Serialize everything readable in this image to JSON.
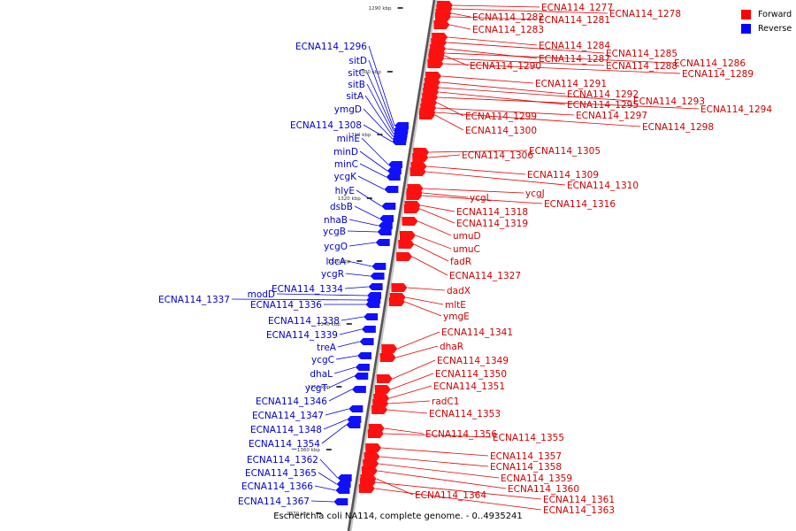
{
  "legend": {
    "forward_label": "Forward",
    "reverse_label": "Reverse",
    "forward_color": "#ff0000",
    "reverse_color": "#0000ff"
  },
  "caption": "Escherichia coli NA114, complete genome. - 0..4935241",
  "axis_ticks": [
    "1290 kbp",
    "1300 kbp",
    "1310 kbp",
    "1320 kbp",
    "1330 kbp",
    "1340 kbp",
    "1350 kbp",
    "1360 kbp",
    "1370 kbp"
  ],
  "forward_genes": [
    "ECNA114_1277",
    "ECNA114_1278",
    "ECNA114_1282",
    "ECNA114_1281",
    "ECNA114_1283",
    "ECNA114_1284",
    "ECNA114_1285",
    "ECNA114_1287",
    "ECNA114_1286",
    "ECNA114_1290",
    "ECNA114_1288",
    "ECNA114_1289",
    "ECNA114_1291",
    "ECNA114_1292",
    "ECNA114_1293",
    "ECNA114_1295",
    "ECNA114_1294",
    "ECNA114_1299",
    "ECNA114_1297",
    "ECNA114_1300",
    "ECNA114_1298",
    "ECNA114_1305",
    "ECNA114_1306",
    "ECNA114_1309",
    "ECNA114_1310",
    "ycgJ",
    "ycgL",
    "ECNA114_1316",
    "ECNA114_1318",
    "ECNA114_1319",
    "umuD",
    "umuC",
    "fadR",
    "ECNA114_1327",
    "dadX",
    "mltE",
    "ymgE",
    "ECNA114_1341",
    "dhaR",
    "ECNA114_1349",
    "ECNA114_1350",
    "ECNA114_1351",
    "radC1",
    "ECNA114_1353",
    "ECNA114_1356",
    "ECNA114_1355",
    "ECNA114_1357",
    "ECNA114_1358",
    "ECNA114_1359",
    "ECNA114_1360",
    "ECNA114_1364",
    "ECNA114_1361",
    "ECNA114_1363"
  ],
  "reverse_genes": [
    "ECNA114_1296",
    "sitD",
    "sitC",
    "sitB",
    "sitA",
    "ymgD",
    "ECNA114_1308",
    "minE",
    "minD",
    "minC",
    "ycgK",
    "hlyE",
    "dsbB",
    "nhaB",
    "ycgB",
    "ycgO",
    "ldcA",
    "ycgR",
    "ECNA114_1334",
    "modD",
    "ECNA114_1337",
    "ECNA114_1336",
    "ECNA114_1338",
    "ECNA114_1339",
    "treA",
    "ycgC",
    "dhaL",
    "ycgT",
    "ECNA114_1346",
    "ECNA114_1347",
    "ECNA114_1348",
    "ECNA114_1354",
    "ECNA114_1362",
    "ECNA114_1365",
    "ECNA114_1366",
    "ECNA114_1367"
  ]
}
